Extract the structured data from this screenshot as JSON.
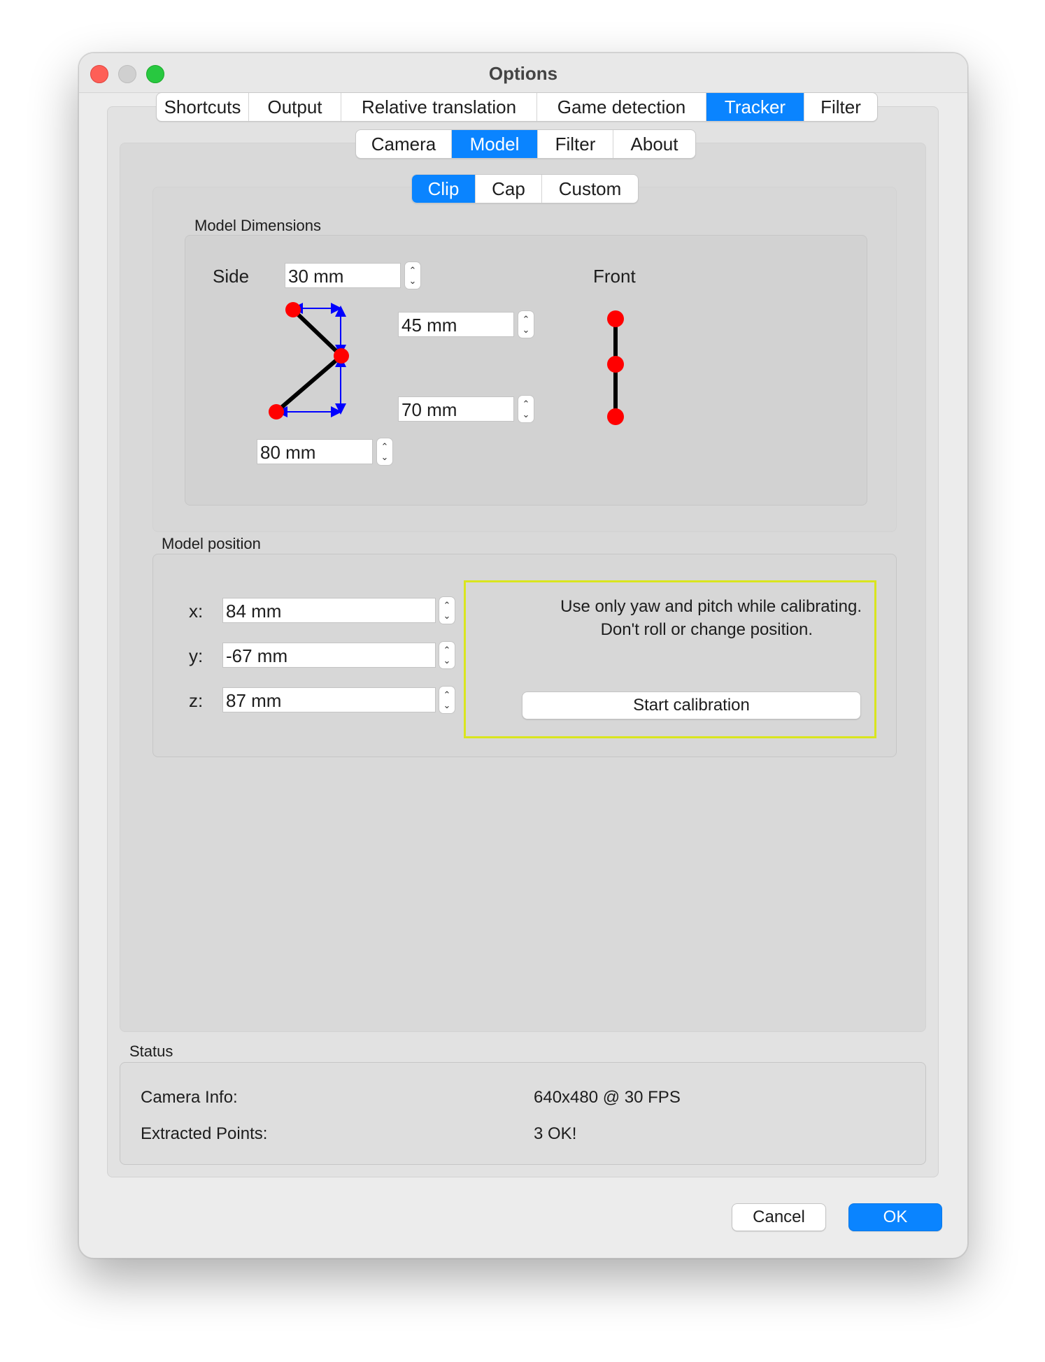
{
  "window": {
    "title": "Options"
  },
  "top_tabs": {
    "items": [
      {
        "label": "Shortcuts"
      },
      {
        "label": "Output"
      },
      {
        "label": "Relative translation"
      },
      {
        "label": "Game detection"
      },
      {
        "label": "Tracker"
      },
      {
        "label": "Filter"
      }
    ],
    "active": "Tracker"
  },
  "tracker_tabs": {
    "items": [
      {
        "label": "Camera"
      },
      {
        "label": "Model"
      },
      {
        "label": "Filter"
      },
      {
        "label": "About"
      }
    ],
    "active": "Model"
  },
  "model_tabs": {
    "items": [
      {
        "label": "Clip"
      },
      {
        "label": "Cap"
      },
      {
        "label": "Custom"
      }
    ],
    "active": "Clip"
  },
  "model_dimensions": {
    "heading": "Model Dimensions",
    "side_label": "Side",
    "front_label": "Front",
    "side_value": "30 mm",
    "top_height": "45 mm",
    "bottom_height": "70 mm",
    "bottom_length": "80 mm"
  },
  "model_position": {
    "heading": "Model position",
    "x_label": "x:",
    "y_label": "y:",
    "z_label": "z:",
    "x_value": "84 mm",
    "y_value": "-67 mm",
    "z_value": "87 mm",
    "calibration_note_line1": "Use only yaw and pitch while calibrating.",
    "calibration_note_line2": "Don't roll or change position.",
    "calibration_button": "Start calibration"
  },
  "status": {
    "heading": "Status",
    "camera_info_label": "Camera Info:",
    "camera_info_value": "640x480 @ 30 FPS",
    "extracted_points_label": "Extracted Points:",
    "extracted_points_value": "3 OK!"
  },
  "buttons": {
    "cancel": "Cancel",
    "ok": "OK"
  },
  "colors": {
    "accent": "#0a84ff",
    "marker": "#ff0000",
    "arrow": "#0000ff",
    "highlight_border": "#d9e51f"
  },
  "icons": {
    "stepper_up": "chevron-up-icon",
    "stepper_down": "chevron-down-icon"
  }
}
